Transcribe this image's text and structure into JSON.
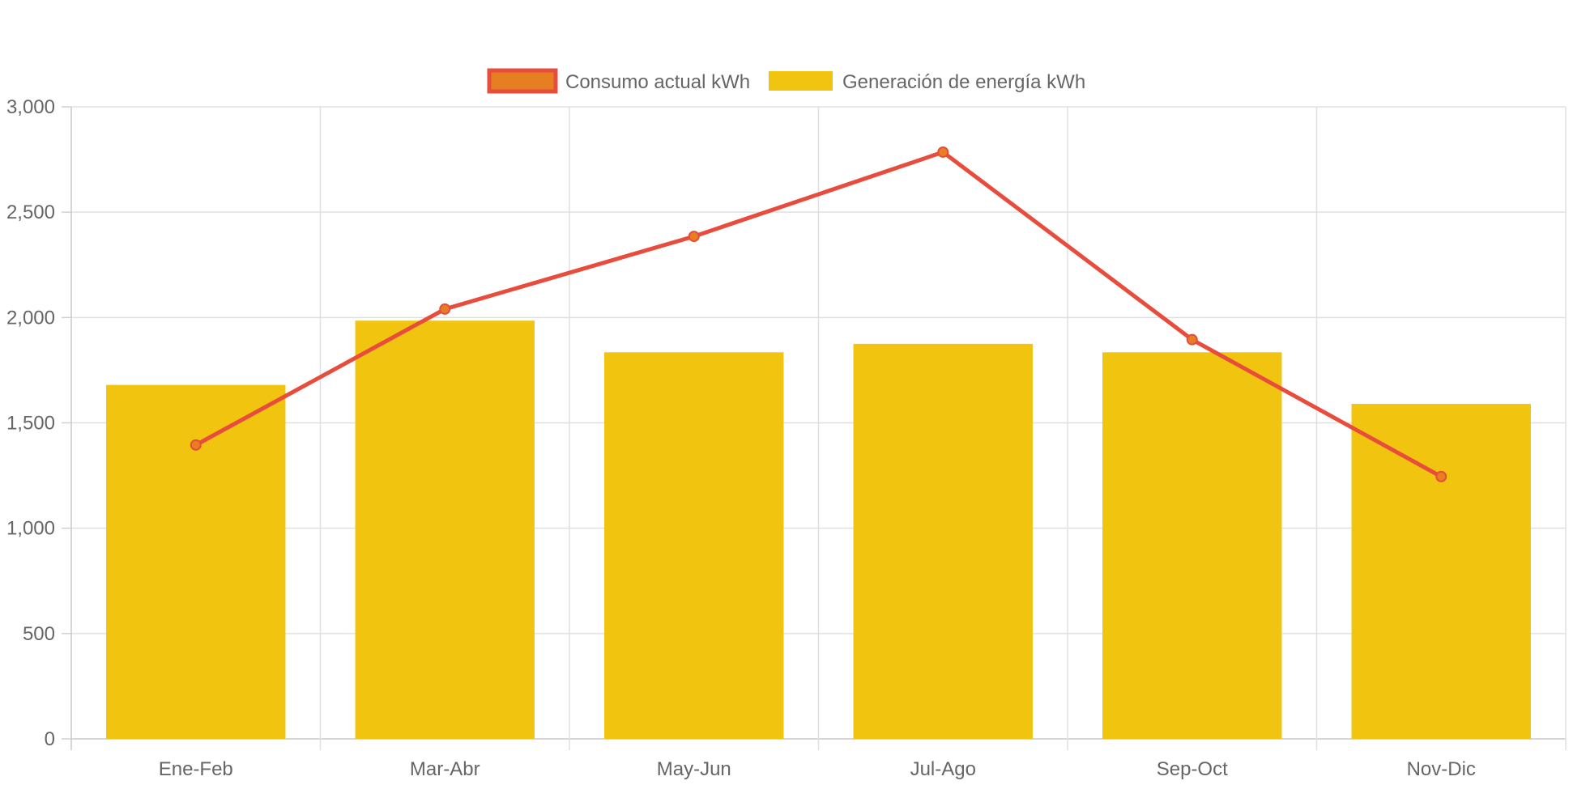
{
  "chart_data": {
    "type": "bar",
    "categories": [
      "Ene-Feb",
      "Mar-Abr",
      "May-Jun",
      "Jul-Ago",
      "Sep-Oct",
      "Nov-Dic"
    ],
    "series": [
      {
        "name": "Consumo actual kWh",
        "type": "line",
        "values": [
          1395,
          2040,
          2385,
          2785,
          1895,
          1245
        ],
        "color": "#e74c3c",
        "point_color": "#e67e22"
      },
      {
        "name": "Generación de energía kWh",
        "type": "bar",
        "values": [
          1680,
          1985,
          1835,
          1875,
          1835,
          1590
        ],
        "color": "#f1c40f"
      }
    ],
    "y_ticks": [
      "0",
      "500",
      "1,000",
      "1,500",
      "2,000",
      "2,500",
      "3,000"
    ],
    "ylim": [
      0,
      3000
    ],
    "title": "",
    "xlabel": "",
    "ylabel": "",
    "grid": true,
    "legend_position": "top-center"
  }
}
